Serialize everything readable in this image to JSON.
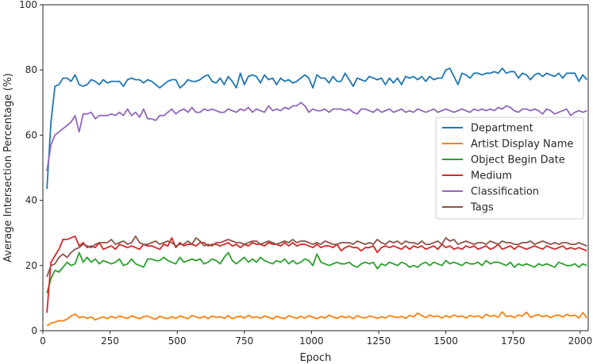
{
  "chart_data": {
    "type": "line",
    "xlabel": "Epoch",
    "ylabel": "Average Intersection Percentage (%)",
    "xlim": [
      0,
      2030
    ],
    "ylim": [
      0,
      100
    ],
    "xticks": [
      0,
      250,
      500,
      750,
      1000,
      1250,
      1500,
      1750,
      2000
    ],
    "yticks": [
      0,
      20,
      40,
      60,
      80,
      100
    ],
    "grid": false,
    "legend_position": "center-right",
    "x": [
      15,
      30,
      45,
      60,
      75,
      90,
      105,
      120,
      135,
      150,
      165,
      180,
      195,
      210,
      225,
      240,
      255,
      270,
      285,
      300,
      315,
      330,
      345,
      360,
      375,
      390,
      405,
      420,
      435,
      450,
      465,
      480,
      495,
      510,
      525,
      540,
      555,
      570,
      585,
      600,
      615,
      630,
      645,
      660,
      675,
      690,
      705,
      720,
      735,
      750,
      765,
      780,
      795,
      810,
      825,
      840,
      855,
      870,
      885,
      900,
      915,
      930,
      945,
      960,
      975,
      990,
      1005,
      1020,
      1035,
      1050,
      1065,
      1080,
      1095,
      1110,
      1125,
      1140,
      1155,
      1170,
      1185,
      1200,
      1215,
      1230,
      1245,
      1260,
      1275,
      1290,
      1305,
      1320,
      1335,
      1350,
      1365,
      1380,
      1395,
      1410,
      1425,
      1440,
      1455,
      1470,
      1485,
      1500,
      1515,
      1530,
      1545,
      1560,
      1575,
      1590,
      1605,
      1620,
      1635,
      1650,
      1665,
      1680,
      1695,
      1710,
      1725,
      1740,
      1755,
      1770,
      1785,
      1800,
      1815,
      1830,
      1845,
      1860,
      1875,
      1890,
      1905,
      1920,
      1935,
      1950,
      1965,
      1980,
      1995,
      2010,
      2025
    ],
    "series": [
      {
        "name": "Department",
        "color": "#1f77b4",
        "values": [
          43.5,
          64,
          75,
          75.5,
          77.5,
          77.5,
          76.5,
          78.5,
          75.5,
          75,
          75.5,
          77,
          76.5,
          75.5,
          77,
          76,
          76.5,
          76.5,
          76.5,
          75,
          77,
          77.5,
          77,
          77,
          76,
          77,
          76.5,
          75.5,
          74.5,
          75.5,
          76.5,
          77,
          77,
          74.5,
          75.5,
          77,
          76.5,
          76.5,
          77,
          78,
          78.5,
          76.5,
          76,
          77.5,
          75.5,
          78,
          76.5,
          74.5,
          79,
          75.5,
          78,
          78.5,
          78,
          76,
          78.5,
          77,
          77.5,
          75.5,
          77.5,
          76.5,
          77,
          76,
          76.5,
          77.5,
          78.5,
          77.5,
          74.5,
          78.5,
          77.5,
          77.5,
          76,
          78,
          76.5,
          76.5,
          79,
          77,
          75,
          77.5,
          77,
          76.5,
          78,
          77.5,
          77,
          77.5,
          75.5,
          77.5,
          76,
          77.5,
          75.5,
          78,
          77.5,
          78,
          77,
          78,
          76.5,
          78,
          77,
          77.5,
          77.5,
          80,
          80.5,
          78,
          75.5,
          79,
          78.5,
          77.5,
          79,
          79,
          78.5,
          79,
          79,
          79.5,
          79,
          80.5,
          79,
          79.5,
          79.5,
          77.5,
          79,
          78.5,
          77,
          78.5,
          79,
          78,
          79,
          78.5,
          78,
          79,
          77.5,
          79,
          79,
          79,
          76.5,
          78.5,
          77
        ]
      },
      {
        "name": "Artist Display Name",
        "color": "#ff7f0e",
        "values": [
          1.5,
          2.3,
          2.6,
          3.1,
          3,
          3.6,
          4.5,
          5.1,
          4,
          4.3,
          3.8,
          4.2,
          3.3,
          3.9,
          4.2,
          3.7,
          4.4,
          3.9,
          4.5,
          4.1,
          3.8,
          4.6,
          4.1,
          3.7,
          4.3,
          4.5,
          3.9,
          3.5,
          4.4,
          4,
          3.7,
          4.3,
          3.8,
          4.5,
          4.1,
          3.7,
          4.7,
          4.2,
          3.9,
          4.4,
          3.7,
          4.5,
          4.1,
          4.3,
          3.8,
          4.6,
          3.7,
          4.2,
          4.4,
          3.9,
          4.7,
          4,
          4.3,
          3.8,
          4.5,
          4.1,
          3.6,
          4.4,
          4,
          3.7,
          4.6,
          4.2,
          3.8,
          4.4,
          3.9,
          4.6,
          4.1,
          3.7,
          4.3,
          3.9,
          4.8,
          4.2,
          3.8,
          4.5,
          4,
          4.4,
          3.7,
          4.6,
          4.1,
          3.9,
          4.5,
          4.2,
          3.8,
          4.3,
          3.9,
          4.6,
          4.3,
          4,
          4.4,
          3.8,
          4.7,
          4.2,
          5.4,
          4.6,
          4,
          4.8,
          4.3,
          4.5,
          3.9,
          4.6,
          4.1,
          4.8,
          4.3,
          4.5,
          3.9,
          4.7,
          4.2,
          4.6,
          3.9,
          5,
          4.4,
          4.7,
          4.1,
          5.8,
          4.3,
          4.6,
          4,
          4.8,
          4.5,
          5.7,
          4.1,
          4.6,
          4.9,
          4.3,
          4.7,
          4,
          4.6,
          4.8,
          4.2,
          5,
          4.5,
          4.8,
          3.9,
          5.5,
          4
        ]
      },
      {
        "name": "Object Begin Date",
        "color": "#2ca02c",
        "values": [
          11.5,
          16,
          18.5,
          18,
          19.5,
          21,
          20,
          20.5,
          24,
          21,
          22.5,
          21,
          22,
          20.5,
          21.5,
          21,
          20.5,
          21,
          22,
          20,
          20.5,
          22,
          20.5,
          20,
          19.5,
          22,
          22,
          21.5,
          21.5,
          22.5,
          21.5,
          21,
          20.5,
          22.5,
          21,
          21.5,
          22,
          21.5,
          22,
          20.5,
          21,
          22,
          21.5,
          20.5,
          22.5,
          24,
          21.5,
          20.5,
          21.5,
          22.5,
          21,
          22,
          21,
          22.5,
          21.5,
          21,
          20.5,
          21.5,
          21,
          22,
          20.5,
          21.5,
          20.5,
          21,
          22,
          21.5,
          20,
          23.5,
          21,
          20.5,
          20,
          20.5,
          21,
          20.5,
          20.5,
          21,
          20,
          19.5,
          20.5,
          21,
          20.5,
          21,
          19,
          20.5,
          20,
          21,
          20.5,
          20,
          21,
          20.5,
          19.5,
          20,
          19.5,
          20.5,
          21,
          20,
          21,
          20.5,
          20,
          21.5,
          20.5,
          21,
          20.5,
          20,
          21,
          20.5,
          20.5,
          21,
          20,
          21.5,
          20.5,
          21,
          21,
          20.5,
          20,
          21,
          19.5,
          20.5,
          20,
          20.5,
          20,
          19.5,
          20.5,
          20,
          20.5,
          20,
          19.5,
          21,
          20.5,
          20,
          20,
          20.5,
          19.5,
          20.5,
          20
        ]
      },
      {
        "name": "Medium",
        "color": "#d62728",
        "values": [
          5.5,
          21,
          23,
          25,
          28,
          28,
          28.5,
          29,
          26,
          27,
          25.5,
          26,
          25.5,
          27,
          25,
          25.5,
          26,
          25,
          26.5,
          26,
          25.5,
          26,
          25.5,
          25,
          26.5,
          26,
          26,
          25.5,
          25,
          26.5,
          26,
          28.5,
          25.5,
          27,
          26,
          26.5,
          26.5,
          26,
          27,
          27,
          26,
          26.5,
          26.5,
          26,
          26.5,
          27,
          26,
          26.5,
          25.5,
          26.5,
          26,
          27,
          26.5,
          26.5,
          26,
          27,
          26.5,
          26.5,
          26,
          27,
          26,
          27,
          26,
          26.5,
          26.5,
          26,
          25.5,
          26.5,
          25.5,
          26,
          26,
          25.5,
          26.5,
          24.5,
          25.5,
          26,
          25.5,
          25.5,
          24.5,
          25.5,
          25.5,
          26,
          24,
          25.5,
          26,
          25.5,
          26,
          25.5,
          25,
          26,
          25,
          26,
          25.5,
          26,
          25,
          25.5,
          26,
          25,
          26.5,
          25.5,
          26,
          25,
          25.5,
          25,
          26,
          25.5,
          26,
          25,
          25.5,
          26,
          25,
          25.5,
          26.5,
          25,
          25.5,
          26,
          25,
          26,
          25.5,
          25,
          25.5,
          26,
          25.5,
          25,
          26,
          25.5,
          25,
          25.5,
          26,
          25,
          25.5,
          25,
          25.5,
          25,
          24.5
        ]
      },
      {
        "name": "Classification",
        "color": "#9467bd",
        "values": [
          49,
          57,
          60,
          61,
          62,
          63,
          64,
          66,
          61,
          66.5,
          66.5,
          67,
          65,
          66,
          66,
          66,
          66.5,
          66,
          67,
          66,
          68,
          66,
          67,
          65.5,
          68,
          65,
          65,
          64.5,
          66,
          66,
          67,
          68,
          66.5,
          67.5,
          68,
          67,
          68.5,
          67,
          67,
          68,
          67.5,
          68,
          67.5,
          67,
          67,
          68,
          67.5,
          67,
          68,
          67.5,
          68.5,
          67,
          68,
          67.5,
          67,
          69,
          67.5,
          68,
          67.5,
          68.5,
          68,
          69,
          69,
          70,
          69,
          67,
          68,
          67.5,
          67.5,
          68,
          67,
          68,
          68,
          68,
          67.5,
          68,
          67,
          66.5,
          68,
          68,
          67.5,
          67,
          68,
          67,
          67.5,
          68,
          67,
          67.5,
          68,
          67,
          67.5,
          67,
          68,
          67.5,
          67,
          67.5,
          68,
          67,
          67.5,
          68,
          67.5,
          67,
          67.5,
          68,
          67.5,
          67,
          68,
          67.5,
          68,
          67.5,
          68,
          67.5,
          68.5,
          68,
          69,
          68.5,
          67.5,
          67,
          68,
          68,
          67.5,
          68,
          67.5,
          66.5,
          68,
          67.5,
          66.5,
          67,
          67.5,
          68,
          66,
          67,
          67.5,
          67,
          67.5
        ]
      },
      {
        "name": "Tags",
        "color": "#8c564b",
        "values": [
          16.5,
          20,
          20.5,
          22.5,
          23.5,
          22.5,
          24,
          25,
          25.5,
          26.5,
          26,
          25.5,
          26.5,
          27,
          27,
          27,
          28,
          26.5,
          27,
          27.5,
          26.5,
          27,
          29,
          27,
          26.5,
          26.5,
          27,
          27.5,
          26.5,
          27,
          27.5,
          27,
          26,
          26.5,
          26.5,
          27.5,
          26.5,
          28.5,
          27.5,
          26,
          26.5,
          26,
          27,
          27,
          27.5,
          28,
          27.5,
          27,
          27,
          26.5,
          27,
          27.5,
          27.5,
          26.5,
          27,
          27.5,
          27,
          26.5,
          27,
          27.5,
          27,
          28,
          27,
          27.5,
          27.5,
          27,
          26.5,
          27,
          26.5,
          27.5,
          27,
          26.5,
          26.5,
          27,
          27,
          27,
          26.5,
          27.5,
          27,
          26.5,
          27,
          26.5,
          28,
          27,
          26.5,
          27.5,
          27,
          27.5,
          26.5,
          27.5,
          27,
          27,
          26.5,
          27.5,
          26.5,
          26.5,
          27,
          27.5,
          26.5,
          28.5,
          27.5,
          28,
          26.5,
          27,
          27.5,
          27,
          26.5,
          27,
          27,
          26.5,
          27.5,
          27,
          26.5,
          27.5,
          27,
          27,
          26.5,
          26.5,
          27,
          27,
          27.5,
          26.5,
          27,
          27.5,
          27,
          26.5,
          27,
          26.5,
          27,
          27,
          26.5,
          26.5,
          27,
          26.5,
          26
        ]
      }
    ]
  }
}
